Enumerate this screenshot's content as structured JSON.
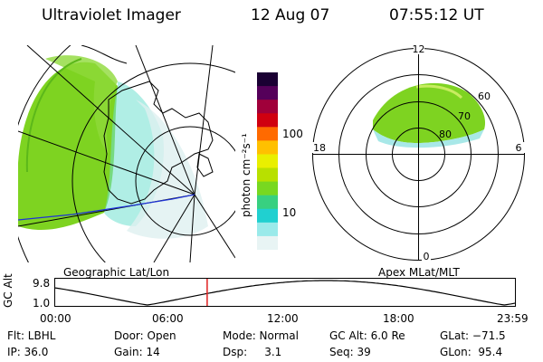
{
  "header": {
    "instrument": "Ultraviolet Imager",
    "date": "12 Aug 07",
    "time": "07:55:12 UT"
  },
  "colorbar": {
    "unit": "photon cm⁻²s⁻¹",
    "ticks": [
      "100",
      "10"
    ],
    "colors": [
      "#1a0033",
      "#55005a",
      "#a0003a",
      "#d00010",
      "#ff6a00",
      "#ffc000",
      "#e9ef00",
      "#b8e000",
      "#78d820",
      "#38d080",
      "#20d0d0",
      "#9aeaea",
      "#e8f4f4"
    ]
  },
  "polar_plot": {
    "clock_labels": [
      "12",
      "18",
      "6",
      "0"
    ],
    "lat_labels": [
      "60",
      "70",
      "80"
    ]
  },
  "panel_titles": {
    "left": "Geographic Lat/Lon",
    "right": "Apex MLat/MLT"
  },
  "timeline": {
    "ylabel": "GC Alt",
    "ytick_top": "9.8",
    "ytick_bottom": "1.0",
    "xticks": [
      "00:00",
      "06:00",
      "12:00",
      "18:00",
      "23:59"
    ],
    "marker_time": "07:55"
  },
  "info": {
    "flt": "Flt: LBHL",
    "ip": "IP: 36.0",
    "door": "Door: Open",
    "gain": "Gain: 14",
    "mode": "Mode: Normal",
    "dsp": "Dsp:     3.1",
    "gcalt": "GC Alt: 6.0 Re",
    "seq": "Seq: 39",
    "glat": "GLat: −71.5",
    "glon": "GLon:  95.4"
  }
}
